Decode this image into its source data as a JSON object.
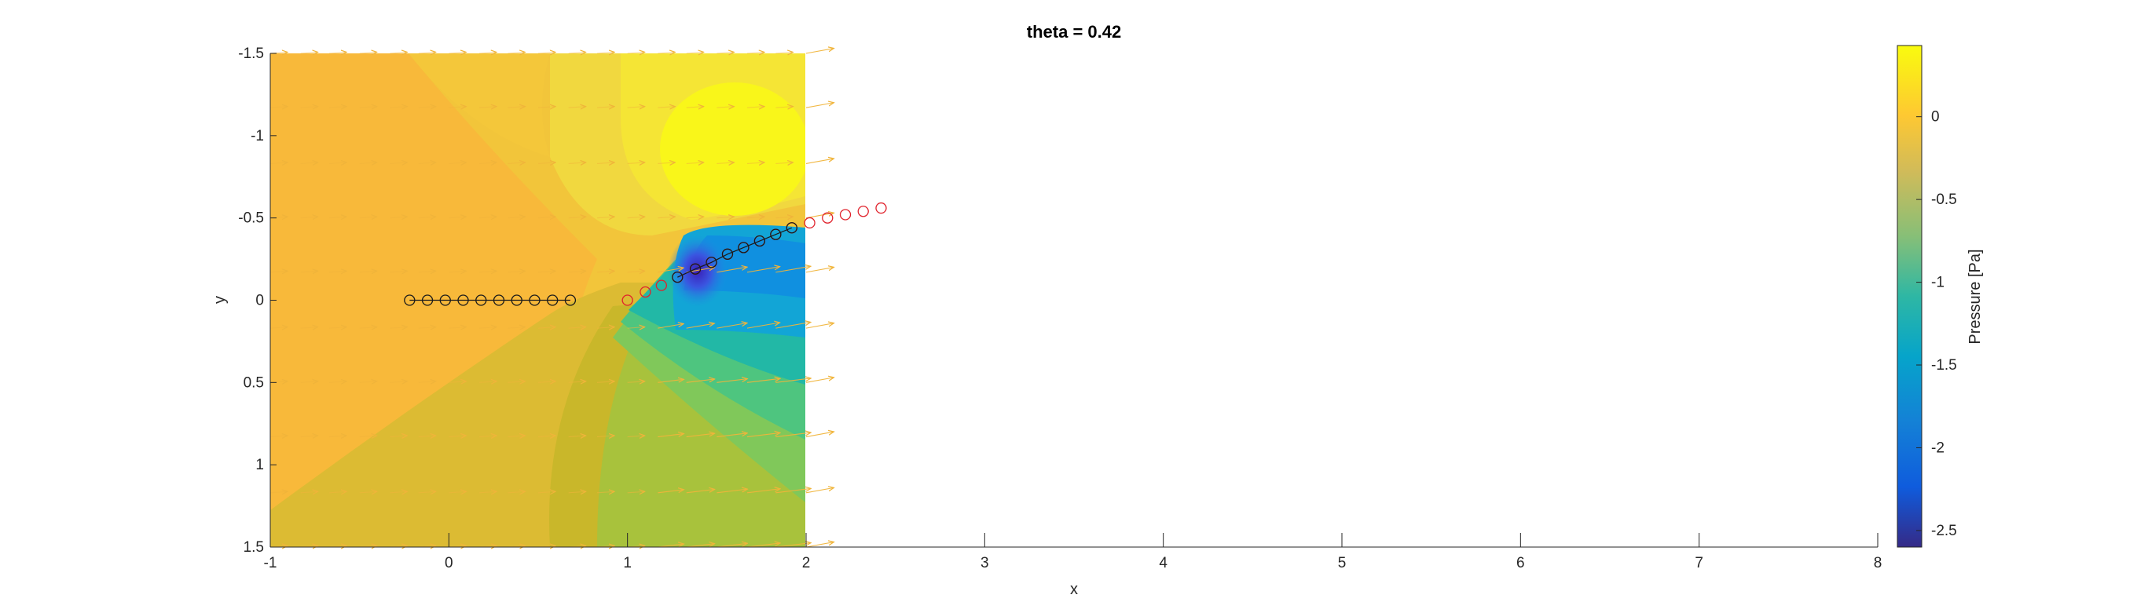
{
  "chart_data": {
    "type": "contour",
    "title": "theta = 0.42",
    "xlabel": "x",
    "ylabel": "y",
    "xlim": [
      -1,
      8
    ],
    "ylim": [
      -1.5,
      1.5
    ],
    "y_direction": "reverse",
    "x_ticks": [
      -1,
      0,
      1,
      2,
      3,
      4,
      5,
      6,
      7,
      8
    ],
    "y_ticks": [
      -1.5,
      -1,
      -0.5,
      0,
      0.5,
      1,
      1.5
    ],
    "field_extent": {
      "x": [
        -1,
        2
      ],
      "y": [
        -1.5,
        1.5
      ]
    },
    "colorbar": {
      "label": "Pressure [Pa]",
      "colormap": "parula",
      "clim": [
        -2.6,
        0.43
      ],
      "ticks": [
        0,
        -0.5,
        -1,
        -1.5,
        -2,
        -2.5
      ]
    },
    "pressure_regions": [
      {
        "desc": "background",
        "value": -0.05,
        "color": "#f2c53a"
      },
      {
        "desc": "left band",
        "value": 0.0,
        "color": "#f8b93a"
      },
      {
        "desc": "lower wake",
        "value": -0.2,
        "color": "#d4b92c"
      },
      {
        "desc": "suction lobe 1",
        "value": -0.45,
        "color": "#9fc642"
      },
      {
        "desc": "suction lobe 2",
        "value": -0.75,
        "color": "#6bcb63"
      },
      {
        "desc": "suction lobe 3",
        "value": -1.05,
        "color": "#2fc196"
      },
      {
        "desc": "suction core",
        "value": -1.4,
        "color": "#12a9d8"
      },
      {
        "desc": "vortex core",
        "value": -2.5,
        "color": "#3a32d6"
      },
      {
        "desc": "upper lobe",
        "value": 0.15,
        "color": "#f4df3c"
      },
      {
        "desc": "peak pressure",
        "value": 0.4,
        "color": "#f9fa14"
      }
    ],
    "series": [
      {
        "name": "",
        "style": "black circles with line",
        "x": [
          -0.22,
          -0.12,
          -0.02,
          0.08,
          0.18,
          0.28,
          0.38,
          0.48,
          0.58,
          0.68
        ],
        "y": [
          0,
          0,
          0,
          0,
          0,
          0,
          0,
          0,
          0,
          0
        ]
      },
      {
        "name": "",
        "style": "red circles",
        "x": [
          1.0,
          1.1,
          1.19,
          1.28,
          1.38,
          1.47,
          1.56,
          1.65,
          1.74,
          1.83,
          1.92,
          2.02,
          2.12,
          2.22,
          2.32,
          2.42
        ],
        "y": [
          0.0,
          -0.05,
          -0.09,
          -0.14,
          -0.19,
          -0.23,
          -0.28,
          -0.32,
          -0.36,
          -0.4,
          -0.44,
          -0.47,
          -0.5,
          -0.52,
          -0.54,
          -0.56
        ]
      },
      {
        "name": "",
        "style": "black circles with line (overlay)",
        "x": [
          1.28,
          1.38,
          1.47,
          1.56,
          1.65,
          1.74,
          1.83,
          1.92
        ],
        "y": [
          -0.14,
          -0.19,
          -0.23,
          -0.28,
          -0.32,
          -0.36,
          -0.4,
          -0.44
        ]
      }
    ],
    "quiver": {
      "color": "#f0b43a",
      "rows_y": [
        -1.5,
        -1.17,
        -0.83,
        -0.5,
        -0.17,
        0.17,
        0.5,
        0.83,
        1.17,
        1.5
      ],
      "cols_x": [
        -1,
        -0.83,
        -0.67,
        -0.5,
        -0.33,
        -0.17,
        0,
        0.17,
        0.33,
        0.5,
        0.67,
        0.83,
        1,
        1.17,
        1.33,
        1.5,
        1.67,
        1.83,
        2
      ]
    }
  }
}
